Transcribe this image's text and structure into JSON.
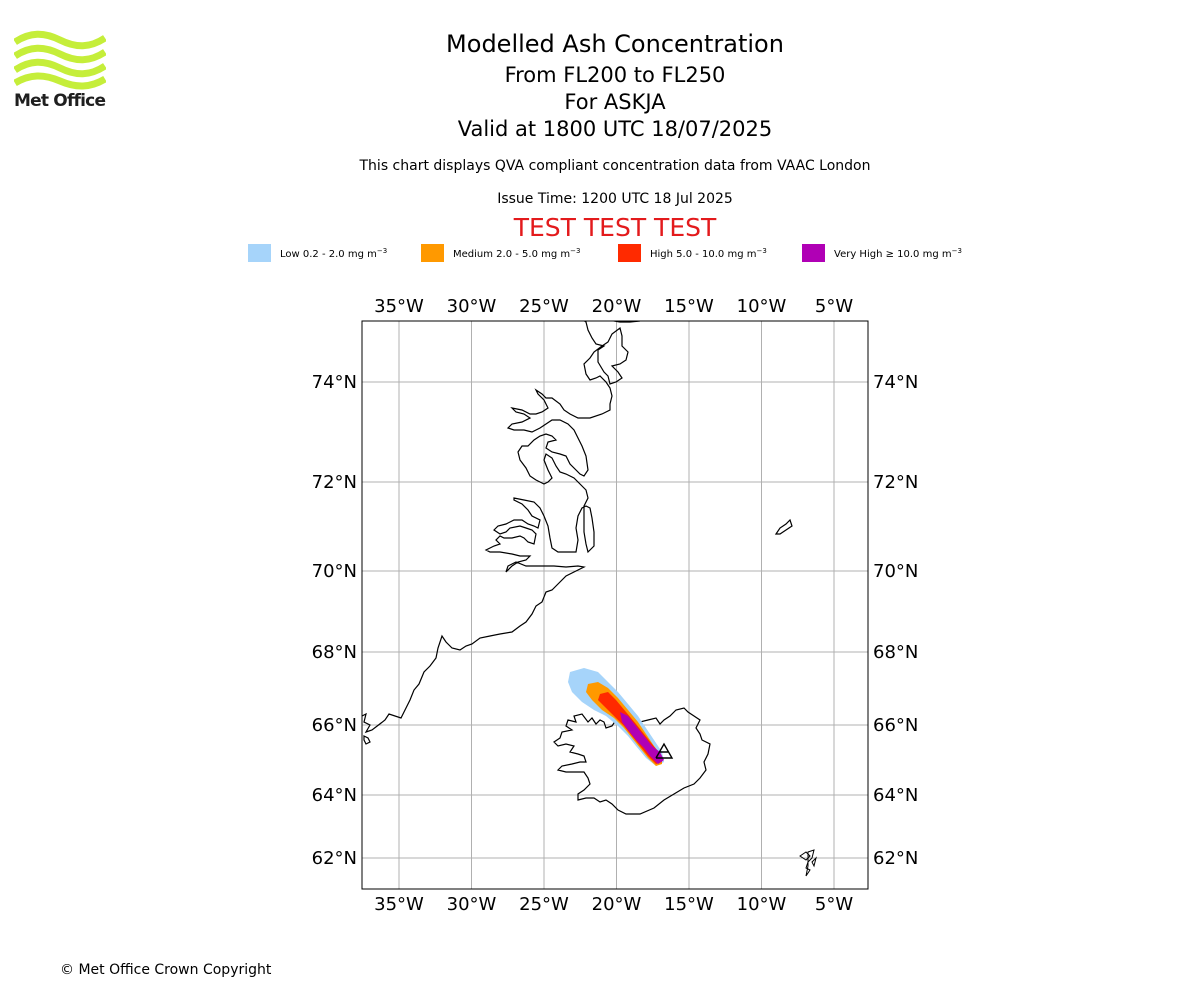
{
  "logo": {
    "text": "Met Office",
    "color": "#c5ee3a"
  },
  "titles": {
    "main": "Modelled Ash Concentration",
    "levels": "From FL200 to FL250",
    "volcano": "For ASKJA",
    "valid": "Valid at 1800 UTC 18/07/2025",
    "compliance": "This chart displays QVA compliant concentration data from VAAC London",
    "issue": "Issue Time: 1200 UTC 18 Jul 2025",
    "test": "TEST TEST TEST"
  },
  "legend": [
    {
      "label": "Low 0.2 - 2.0 mg m",
      "unit_exp": "−3",
      "color": "#a6d4fa"
    },
    {
      "label": "Medium 2.0 - 5.0 mg m",
      "unit_exp": "−3",
      "color": "#ff9900"
    },
    {
      "label": "High 5.0 - 10.0 mg m",
      "unit_exp": "−3",
      "color": "#ff2a00"
    },
    {
      "label": "Very High  ≥  10.0 mg m",
      "unit_exp": "−3",
      "color": "#b000b5"
    }
  ],
  "map": {
    "lon_labels": [
      "35°W",
      "30°W",
      "25°W",
      "20°W",
      "15°W",
      "10°W",
      "5°W"
    ],
    "lat_labels": [
      "74°N",
      "72°N",
      "70°N",
      "68°N",
      "66°N",
      "64°N",
      "62°N"
    ],
    "lon_values": [
      -35,
      -30,
      -25,
      -20,
      -15,
      -10,
      -5
    ],
    "lat_values": [
      74,
      72,
      70,
      68,
      66,
      64,
      62
    ],
    "grid": true,
    "source_volcano": "ASKJA"
  },
  "footer": {
    "copyright": "© Met Office Crown Copyright"
  }
}
